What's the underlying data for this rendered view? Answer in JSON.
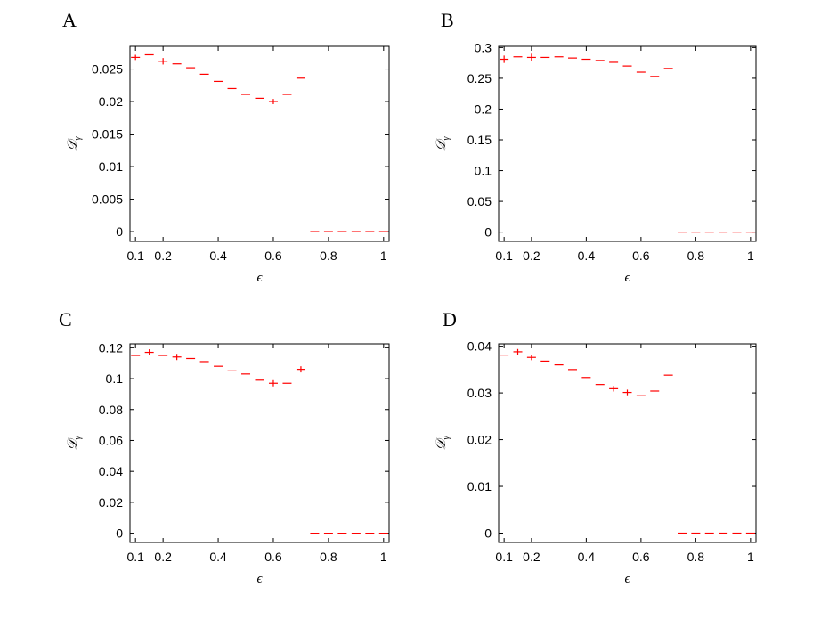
{
  "colors": {
    "marker": "#ff0000",
    "marker_alt": "#6b1fa8",
    "axis": "#000000"
  },
  "chart_data": [
    {
      "type": "scatter",
      "panel": "A",
      "xlabel": "ϵ",
      "ylabel": "𝒟",
      "ylabel_sub": "γ",
      "xlim": [
        0.08,
        1.02
      ],
      "ylim": [
        -0.0015,
        0.0285
      ],
      "xticks": [
        0.1,
        0.2,
        0.4,
        0.6,
        0.8,
        1
      ],
      "xtick_labels": [
        "0.1",
        "0.2",
        "0.4",
        "0.6",
        "0.8",
        "1"
      ],
      "yticks": [
        0,
        0.005,
        0.01,
        0.015,
        0.02,
        0.025
      ],
      "ytick_labels": [
        "0",
        "0.005",
        "0.01",
        "0.015",
        "0.02",
        "0.025"
      ],
      "x": [
        0.1,
        0.15,
        0.2,
        0.25,
        0.3,
        0.35,
        0.4,
        0.45,
        0.5,
        0.55,
        0.6,
        0.65,
        0.7,
        0.75,
        0.8,
        0.85,
        0.9,
        0.95,
        1.0
      ],
      "y": [
        0.0268,
        0.0272,
        0.0262,
        0.0258,
        0.0252,
        0.0242,
        0.0231,
        0.022,
        0.0211,
        0.0205,
        0.02,
        0.0211,
        0.0236,
        0,
        0,
        0,
        0,
        0,
        0
      ],
      "err": [
        0.0004,
        0,
        0.0005,
        0,
        0,
        0,
        0,
        0,
        0,
        0,
        0.0004,
        0,
        0,
        0,
        0,
        0,
        0,
        0,
        0
      ]
    },
    {
      "type": "scatter",
      "panel": "B",
      "xlabel": "ϵ",
      "ylabel": "𝒟",
      "ylabel_sub": "γ",
      "xlim": [
        0.08,
        1.02
      ],
      "ylim": [
        -0.015,
        0.302
      ],
      "xticks": [
        0.1,
        0.2,
        0.4,
        0.6,
        0.8,
        1
      ],
      "xtick_labels": [
        "0.1",
        "0.2",
        "0.4",
        "0.6",
        "0.8",
        "1"
      ],
      "yticks": [
        0,
        0.05,
        0.1,
        0.15,
        0.2,
        0.25,
        0.3
      ],
      "ytick_labels": [
        "0",
        "0.05",
        "0.1",
        "0.15",
        "0.2",
        "0.25",
        "0.3"
      ],
      "x": [
        0.1,
        0.15,
        0.2,
        0.25,
        0.3,
        0.35,
        0.4,
        0.45,
        0.5,
        0.55,
        0.6,
        0.65,
        0.7,
        0.75,
        0.8,
        0.85,
        0.9,
        0.95,
        1.0
      ],
      "y": [
        0.281,
        0.285,
        0.284,
        0.284,
        0.285,
        0.283,
        0.281,
        0.279,
        0.276,
        0.27,
        0.26,
        0.253,
        0.266,
        0,
        0,
        0,
        0,
        0,
        0
      ],
      "err": [
        0.006,
        0,
        0.006,
        0,
        0,
        0,
        0,
        0,
        0,
        0,
        0,
        0,
        0,
        0,
        0,
        0,
        0,
        0,
        0
      ]
    },
    {
      "type": "scatter",
      "panel": "C",
      "xlabel": "ϵ",
      "ylabel": "𝒟",
      "ylabel_sub": "γ",
      "xlim": [
        0.08,
        1.02
      ],
      "ylim": [
        -0.006,
        0.1225
      ],
      "xticks": [
        0.1,
        0.2,
        0.4,
        0.6,
        0.8,
        1
      ],
      "xtick_labels": [
        "0.1",
        "0.2",
        "0.4",
        "0.6",
        "0.8",
        "1"
      ],
      "yticks": [
        0,
        0.02,
        0.04,
        0.06,
        0.08,
        0.1,
        0.12
      ],
      "ytick_labels": [
        "0",
        "0.02",
        "0.04",
        "0.06",
        "0.08",
        "0.1",
        "0.12"
      ],
      "x": [
        0.1,
        0.15,
        0.2,
        0.25,
        0.3,
        0.35,
        0.4,
        0.45,
        0.5,
        0.55,
        0.6,
        0.65,
        0.7,
        0.75,
        0.8,
        0.85,
        0.9,
        0.95,
        1.0
      ],
      "y": [
        0.115,
        0.117,
        0.115,
        0.114,
        0.113,
        0.111,
        0.108,
        0.105,
        0.103,
        0.099,
        0.097,
        0.097,
        0.106,
        0,
        0,
        0,
        0,
        0,
        0
      ],
      "err": [
        0,
        0.002,
        0,
        0.002,
        0,
        0,
        0,
        0,
        0,
        0,
        0.002,
        0,
        0.002,
        0,
        0,
        0,
        0,
        0,
        0
      ]
    },
    {
      "type": "scatter",
      "panel": "D",
      "xlabel": "ϵ",
      "ylabel": "𝒟",
      "ylabel_sub": "γ",
      "xlim": [
        0.08,
        1.02
      ],
      "ylim": [
        -0.002,
        0.0405
      ],
      "xticks": [
        0.1,
        0.2,
        0.4,
        0.6,
        0.8,
        1
      ],
      "xtick_labels": [
        "0.1",
        "0.2",
        "0.4",
        "0.6",
        "0.8",
        "1"
      ],
      "yticks": [
        0,
        0.01,
        0.02,
        0.03,
        0.04
      ],
      "ytick_labels": [
        "0",
        "0.01",
        "0.02",
        "0.03",
        "0.04"
      ],
      "x": [
        0.1,
        0.15,
        0.2,
        0.25,
        0.3,
        0.35,
        0.4,
        0.45,
        0.5,
        0.55,
        0.6,
        0.65,
        0.7,
        0.75,
        0.8,
        0.85,
        0.9,
        0.95,
        1.0
      ],
      "y": [
        0.0381,
        0.0388,
        0.0376,
        0.0368,
        0.036,
        0.035,
        0.0333,
        0.0318,
        0.0309,
        0.0301,
        0.0294,
        0.0304,
        0.0338,
        0,
        0,
        0,
        0,
        0,
        0
      ],
      "err": [
        0,
        0.0006,
        0.0006,
        0,
        0,
        0,
        0,
        0,
        0.0006,
        0.0006,
        0,
        0,
        0,
        0,
        0,
        0,
        0,
        0,
        0
      ]
    }
  ]
}
